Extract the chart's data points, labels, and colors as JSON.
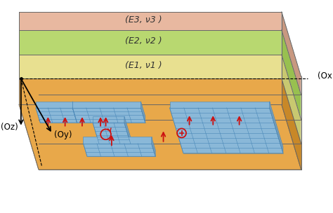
{
  "bg_color": "#ffffff",
  "top_surface_color": "#e8a84a",
  "top_surface_right": "#c88828",
  "layer1_color_front": "#e8e090",
  "layer1_color_right": "#c8c870",
  "layer1_color_top": "#e8e090",
  "layer2_color_front": "#b8d870",
  "layer2_color_right": "#98c050",
  "layer2_color_top": "#c8e080",
  "layer3_color_front": "#e8b8a0",
  "layer3_color_right": "#c89880",
  "layer3_color_top": "#e8c0a8",
  "foundation_fill": "#8ab8d8",
  "foundation_edge": "#4a88b8",
  "foundation_top": "#a0c8e0",
  "label_e1": "(E1, ν1 )",
  "label_e2": "(E2, ν2 )",
  "label_e3": "(E3, ν3 )",
  "axis_ox": "(Ox)",
  "axis_oy": "(Oy)",
  "axis_oz": "(Oz)",
  "arrow_color": "#cc1111",
  "text_color": "#222222",
  "dpi": 100
}
